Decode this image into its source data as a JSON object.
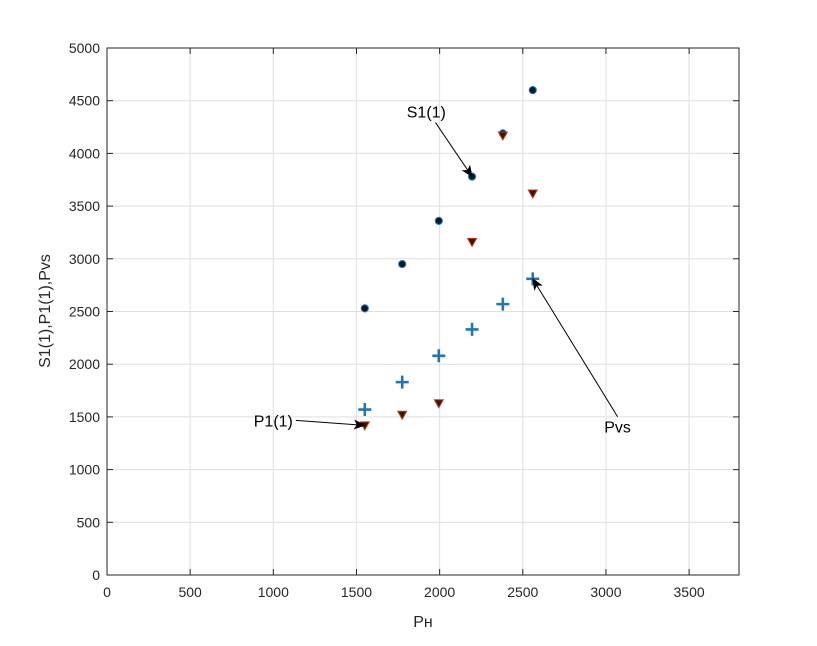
{
  "chart_data": {
    "type": "scatter",
    "xlabel": "Pн",
    "ylabel": "S1(1),P1(1),Pvs",
    "xlim": [
      0,
      3800
    ],
    "ylim": [
      0,
      5000
    ],
    "xticks": [
      0,
      500,
      1000,
      1500,
      2000,
      2500,
      3000,
      3500
    ],
    "yticks": [
      0,
      500,
      1000,
      1500,
      2000,
      2500,
      3000,
      3500,
      4000,
      4500,
      5000
    ],
    "grid": true,
    "series": [
      {
        "key": "s1",
        "marker": "circle",
        "color": "#0a1a2a",
        "edge": "#1a7fc0",
        "x": [
          1550,
          1775,
          1995,
          2195,
          2380,
          2560
        ],
        "y": [
          2530,
          2950,
          3360,
          3780,
          4190,
          4600
        ]
      },
      {
        "key": "p1",
        "marker": "triangle-down",
        "color": "#3a1408",
        "edge": "#c0401a",
        "x": [
          1550,
          1775,
          1995,
          2195,
          2380,
          2560
        ],
        "y": [
          1420,
          1520,
          1630,
          3160,
          4170,
          3620
        ]
      },
      {
        "key": "pvs",
        "marker": "plus",
        "color": "#1f77b4",
        "x": [
          1550,
          1775,
          1995,
          2195,
          2380,
          2560
        ],
        "y": [
          1570,
          1830,
          2080,
          2330,
          2570,
          2810
        ]
      }
    ],
    "annotations": [
      {
        "text": "S1(1)",
        "text_x": 1920,
        "text_y": 4340,
        "arrow_x": 2195,
        "arrow_y": 3780
      },
      {
        "text": "P1(1)",
        "text_x": 1000,
        "text_y": 1410,
        "arrow_x": 1550,
        "arrow_y": 1420
      },
      {
        "text": "Pvs",
        "text_x": 3070,
        "text_y": 1350,
        "arrow_x": 2560,
        "arrow_y": 2810
      }
    ]
  }
}
